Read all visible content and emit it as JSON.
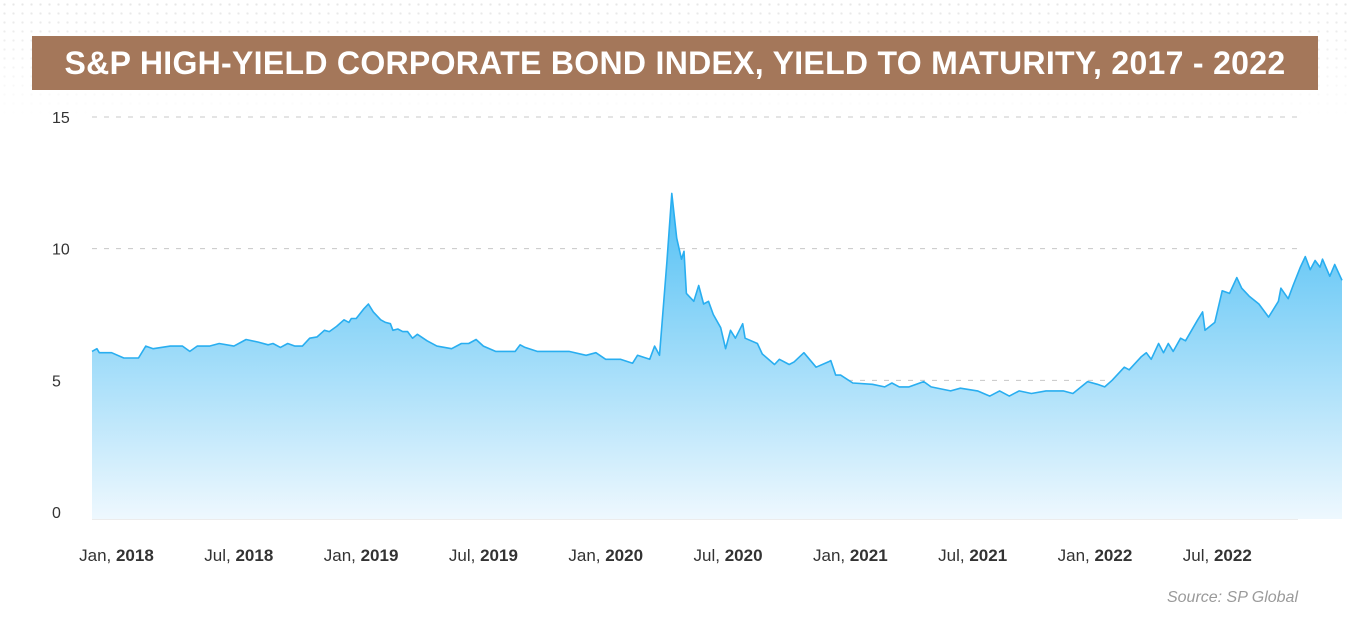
{
  "title": "S&P HIGH-YIELD CORPORATE BOND INDEX, YIELD TO MATURITY, 2017 - 2022",
  "source": "Source: SP Global",
  "colors": {
    "banner": "#a4775a",
    "line": "#29aef0",
    "fill_top": "#4fbff4",
    "fill_bottom": "#eef8fe",
    "grid": "#c8c8c8"
  },
  "chart_data": {
    "type": "area",
    "x_unit": "year",
    "xlim": [
      2017.9,
      2022.83
    ],
    "ylim": [
      0,
      15
    ],
    "yticks": [
      0,
      5,
      10,
      15
    ],
    "grid": true,
    "xticks": [
      {
        "x": 2018.0,
        "month": "Jan,",
        "year": "2018"
      },
      {
        "x": 2018.5,
        "month": "Jul,",
        "year": "2018"
      },
      {
        "x": 2019.0,
        "month": "Jan,",
        "year": "2019"
      },
      {
        "x": 2019.5,
        "month": "Jul,",
        "year": "2019"
      },
      {
        "x": 2020.0,
        "month": "Jan,",
        "year": "2020"
      },
      {
        "x": 2020.5,
        "month": "Jul,",
        "year": "2020"
      },
      {
        "x": 2021.0,
        "month": "Jan,",
        "year": "2021"
      },
      {
        "x": 2021.5,
        "month": "Jul,",
        "year": "2021"
      },
      {
        "x": 2022.0,
        "month": "Jan,",
        "year": "2022"
      },
      {
        "x": 2022.5,
        "month": "Jul,",
        "year": "2022"
      }
    ],
    "series": [
      {
        "points": [
          [
            2017.9,
            6.1
          ],
          [
            2017.92,
            6.2
          ],
          [
            2017.93,
            6.05
          ],
          [
            2017.98,
            6.05
          ],
          [
            2018.03,
            5.85
          ],
          [
            2018.09,
            5.85
          ],
          [
            2018.12,
            6.3
          ],
          [
            2018.15,
            6.2
          ],
          [
            2018.22,
            6.3
          ],
          [
            2018.27,
            6.3
          ],
          [
            2018.3,
            6.1
          ],
          [
            2018.33,
            6.3
          ],
          [
            2018.38,
            6.3
          ],
          [
            2018.42,
            6.4
          ],
          [
            2018.48,
            6.3
          ],
          [
            2018.53,
            6.55
          ],
          [
            2018.58,
            6.45
          ],
          [
            2018.62,
            6.35
          ],
          [
            2018.64,
            6.4
          ],
          [
            2018.67,
            6.25
          ],
          [
            2018.7,
            6.4
          ],
          [
            2018.73,
            6.3
          ],
          [
            2018.76,
            6.3
          ],
          [
            2018.79,
            6.6
          ],
          [
            2018.82,
            6.65
          ],
          [
            2018.85,
            6.9
          ],
          [
            2018.87,
            6.85
          ],
          [
            2018.9,
            7.05
          ],
          [
            2018.93,
            7.3
          ],
          [
            2018.95,
            7.2
          ],
          [
            2018.96,
            7.35
          ],
          [
            2018.98,
            7.35
          ],
          [
            2019.01,
            7.7
          ],
          [
            2019.03,
            7.9
          ],
          [
            2019.05,
            7.6
          ],
          [
            2019.08,
            7.3
          ],
          [
            2019.1,
            7.2
          ],
          [
            2019.12,
            7.15
          ],
          [
            2019.13,
            6.9
          ],
          [
            2019.15,
            6.95
          ],
          [
            2019.17,
            6.85
          ],
          [
            2019.19,
            6.85
          ],
          [
            2019.21,
            6.6
          ],
          [
            2019.23,
            6.75
          ],
          [
            2019.27,
            6.5
          ],
          [
            2019.31,
            6.3
          ],
          [
            2019.37,
            6.2
          ],
          [
            2019.41,
            6.4
          ],
          [
            2019.44,
            6.4
          ],
          [
            2019.47,
            6.55
          ],
          [
            2019.5,
            6.3
          ],
          [
            2019.55,
            6.1
          ],
          [
            2019.6,
            6.1
          ],
          [
            2019.63,
            6.1
          ],
          [
            2019.65,
            6.35
          ],
          [
            2019.67,
            6.25
          ],
          [
            2019.72,
            6.1
          ],
          [
            2019.85,
            6.1
          ],
          [
            2019.92,
            5.95
          ],
          [
            2019.96,
            6.05
          ],
          [
            2020.0,
            5.8
          ],
          [
            2020.06,
            5.8
          ],
          [
            2020.11,
            5.65
          ],
          [
            2020.13,
            5.95
          ],
          [
            2020.18,
            5.8
          ],
          [
            2020.2,
            6.3
          ],
          [
            2020.22,
            5.95
          ],
          [
            2020.25,
            9.5
          ],
          [
            2020.27,
            12.1
          ],
          [
            2020.29,
            10.4
          ],
          [
            2020.31,
            9.6
          ],
          [
            2020.32,
            9.9
          ],
          [
            2020.33,
            8.3
          ],
          [
            2020.36,
            8.0
          ],
          [
            2020.38,
            8.6
          ],
          [
            2020.4,
            7.9
          ],
          [
            2020.42,
            8.0
          ],
          [
            2020.44,
            7.5
          ],
          [
            2020.47,
            7.0
          ],
          [
            2020.49,
            6.2
          ],
          [
            2020.51,
            6.9
          ],
          [
            2020.53,
            6.6
          ],
          [
            2020.56,
            7.15
          ],
          [
            2020.57,
            6.6
          ],
          [
            2020.62,
            6.4
          ],
          [
            2020.64,
            6.0
          ],
          [
            2020.69,
            5.6
          ],
          [
            2020.71,
            5.8
          ],
          [
            2020.75,
            5.6
          ],
          [
            2020.77,
            5.7
          ],
          [
            2020.81,
            6.05
          ],
          [
            2020.86,
            5.5
          ],
          [
            2020.91,
            5.7
          ],
          [
            2020.92,
            5.75
          ],
          [
            2020.94,
            5.2
          ],
          [
            2020.96,
            5.2
          ],
          [
            2021.01,
            4.9
          ],
          [
            2021.09,
            4.85
          ],
          [
            2021.14,
            4.75
          ],
          [
            2021.17,
            4.9
          ],
          [
            2021.2,
            4.75
          ],
          [
            2021.24,
            4.75
          ],
          [
            2021.3,
            4.95
          ],
          [
            2021.33,
            4.75
          ],
          [
            2021.41,
            4.6
          ],
          [
            2021.45,
            4.7
          ],
          [
            2021.52,
            4.6
          ],
          [
            2021.57,
            4.4
          ],
          [
            2021.61,
            4.6
          ],
          [
            2021.65,
            4.4
          ],
          [
            2021.69,
            4.6
          ],
          [
            2021.74,
            4.5
          ],
          [
            2021.8,
            4.6
          ],
          [
            2021.87,
            4.6
          ],
          [
            2021.91,
            4.5
          ],
          [
            2021.97,
            4.95
          ],
          [
            2022.01,
            4.85
          ],
          [
            2022.04,
            4.75
          ],
          [
            2022.07,
            5.0
          ],
          [
            2022.12,
            5.5
          ],
          [
            2022.14,
            5.4
          ],
          [
            2022.19,
            5.9
          ],
          [
            2022.21,
            6.05
          ],
          [
            2022.23,
            5.8
          ],
          [
            2022.26,
            6.4
          ],
          [
            2022.28,
            6.05
          ],
          [
            2022.3,
            6.4
          ],
          [
            2022.32,
            6.1
          ],
          [
            2022.35,
            6.6
          ],
          [
            2022.37,
            6.5
          ],
          [
            2022.42,
            7.3
          ],
          [
            2022.44,
            7.6
          ],
          [
            2022.45,
            6.9
          ],
          [
            2022.49,
            7.2
          ],
          [
            2022.52,
            8.4
          ],
          [
            2022.55,
            8.3
          ],
          [
            2022.58,
            8.9
          ],
          [
            2022.6,
            8.5
          ],
          [
            2022.63,
            8.2
          ],
          [
            2022.67,
            7.9
          ],
          [
            2022.71,
            7.4
          ],
          [
            2022.75,
            8.0
          ],
          [
            2022.76,
            8.5
          ],
          [
            2022.79,
            8.1
          ],
          [
            2022.81,
            8.6
          ],
          [
            2022.84,
            9.3
          ],
          [
            2022.86,
            9.7
          ],
          [
            2022.88,
            9.2
          ],
          [
            2022.9,
            9.55
          ],
          [
            2022.92,
            9.3
          ],
          [
            2022.93,
            9.6
          ],
          [
            2022.96,
            8.95
          ],
          [
            2022.98,
            9.4
          ],
          [
            2023.01,
            8.8
          ]
        ]
      }
    ]
  }
}
